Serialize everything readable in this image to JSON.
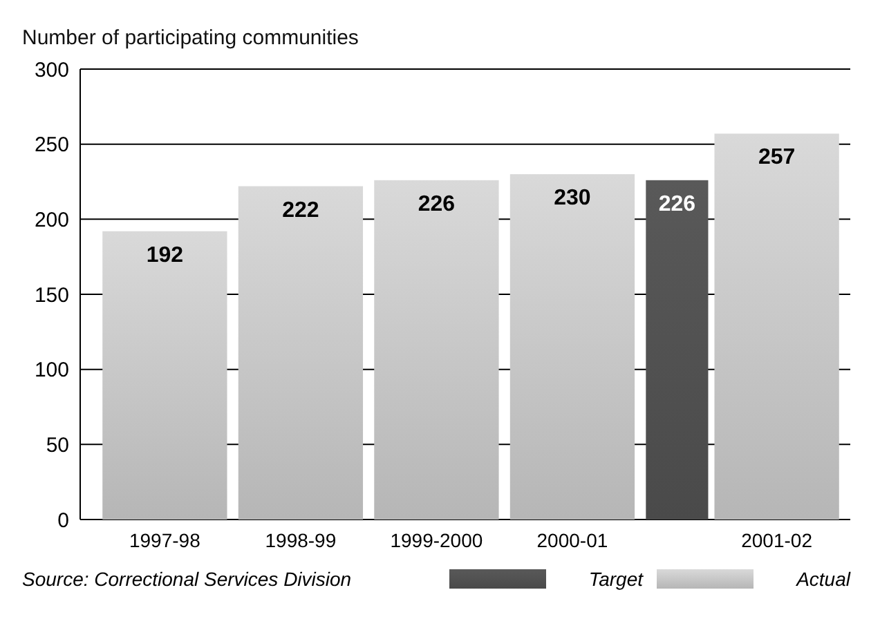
{
  "chart_data": {
    "type": "bar",
    "ylabel": "Number of participating communities",
    "categories": [
      "1997-98",
      "1998-99",
      "1999-2000",
      "2000-01",
      "2001-02"
    ],
    "series": [
      {
        "name": "Target",
        "color": "#595959",
        "values": [
          null,
          null,
          null,
          null,
          226
        ]
      },
      {
        "name": "Actual",
        "color": "#d9d9d9",
        "values": [
          192,
          222,
          226,
          230,
          257
        ]
      }
    ],
    "ylim": [
      0,
      300
    ],
    "yticks": [
      0,
      50,
      100,
      150,
      200,
      250,
      300
    ],
    "grid": "y",
    "data_labels": true,
    "legend": "bottom right",
    "annotations": [
      "Source:  Correctional Services Division"
    ]
  }
}
